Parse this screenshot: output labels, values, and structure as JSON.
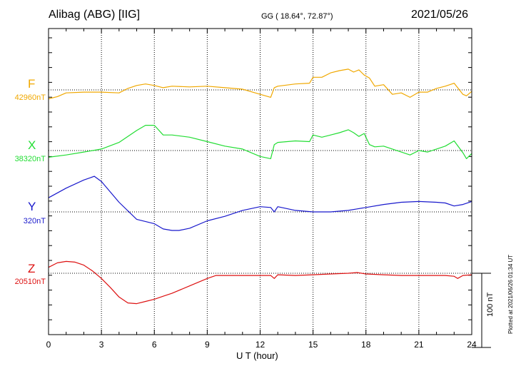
{
  "header": {
    "title": "Alibag (ABG)  [IIG]",
    "coords": "GG ( 18.64°,  72.87°)",
    "date": "2021/05/26"
  },
  "footer": {
    "plotted": "Plotted at 2021/06/26 01:34 UT",
    "scale_label": "100 nT"
  },
  "chart_data": {
    "type": "line",
    "xlabel": "U T (hour)",
    "xlim": [
      0,
      24
    ],
    "xticks": [
      "0",
      "3",
      "6",
      "9",
      "12",
      "15",
      "18",
      "21",
      "24"
    ],
    "grid": true,
    "scale_bar_nT": 100,
    "series": [
      {
        "name": "F",
        "baseline_label": "42960nT",
        "baseline_nT": 42960,
        "color": "#f0a800",
        "x": [
          0,
          0.5,
          1,
          2,
          3,
          4,
          4.5,
          5,
          5.5,
          6,
          6.5,
          7,
          8,
          9,
          10,
          11,
          12,
          12.6,
          12.8,
          13,
          14,
          14.8,
          15,
          15.5,
          16,
          16.5,
          17,
          17.3,
          17.6,
          17.9,
          18.2,
          18.5,
          19,
          19.5,
          20,
          20.5,
          21,
          21.5,
          22,
          22.5,
          23,
          23.5,
          23.7,
          24
        ],
        "values": [
          42948,
          42951,
          42956,
          42957,
          42957,
          42956,
          42962,
          42966,
          42968,
          42966,
          42963,
          42965,
          42964,
          42965,
          42963,
          42961,
          42954,
          42950,
          42963,
          42965,
          42968,
          42969,
          42977,
          42977,
          42983,
          42986,
          42988,
          42984,
          42987,
          42980,
          42976,
          42965,
          42967,
          42954,
          42956,
          42950,
          42957,
          42957,
          42962,
          42965,
          42969,
          42954,
          42952,
          42958
        ]
      },
      {
        "name": "X",
        "baseline_label": "38320nT",
        "baseline_nT": 38320,
        "color": "#22dd33",
        "x": [
          0,
          1,
          2,
          3,
          4,
          5,
          5.5,
          6,
          6.5,
          7,
          8,
          9,
          10,
          11,
          12,
          12.6,
          12.8,
          13,
          14,
          14.8,
          15,
          15.5,
          16,
          16.5,
          17,
          17.3,
          17.6,
          17.9,
          18.2,
          18.5,
          19,
          19.5,
          20,
          20.5,
          21,
          21.5,
          22,
          22.5,
          23,
          23.5,
          23.7,
          24
        ],
        "values": [
          38311,
          38314,
          38318,
          38322,
          38331,
          38347,
          38354,
          38354,
          38341,
          38341,
          38338,
          38332,
          38326,
          38322,
          38312,
          38309,
          38328,
          38331,
          38333,
          38332,
          38341,
          38338,
          38341,
          38344,
          38348,
          38344,
          38339,
          38343,
          38328,
          38325,
          38326,
          38322,
          38318,
          38314,
          38320,
          38318,
          38322,
          38326,
          38333,
          38317,
          38309,
          38316
        ]
      },
      {
        "name": "Y",
        "baseline_label": "320nT",
        "baseline_nT": 320,
        "color": "#1818cc",
        "x": [
          0,
          1,
          2,
          2.6,
          3,
          4,
          5,
          6,
          6.5,
          7,
          7.4,
          8,
          9,
          10,
          11,
          12,
          12.6,
          12.8,
          13,
          14,
          15,
          16,
          17,
          17.5,
          18,
          19,
          20,
          21,
          22,
          22.5,
          23,
          23.5,
          24
        ],
        "values": [
          339,
          352,
          363,
          368,
          361,
          333,
          310,
          304,
          297,
          295,
          295,
          298,
          308,
          314,
          322,
          327,
          326,
          320,
          327,
          322,
          320,
          320,
          322,
          324,
          326,
          330,
          333,
          334,
          333,
          332,
          328,
          330,
          334
        ]
      },
      {
        "name": "Z",
        "baseline_label": "20510nT",
        "baseline_nT": 20510,
        "color": "#dd1111",
        "x": [
          0,
          0.5,
          1,
          1.5,
          2,
          2.5,
          3,
          3.5,
          4,
          4.5,
          5,
          5.5,
          6,
          6.5,
          7,
          8,
          9,
          9.5,
          10,
          11,
          12,
          12.6,
          12.8,
          13,
          14,
          15,
          16,
          17,
          17.5,
          18,
          19,
          20,
          21,
          22,
          22.5,
          23,
          23.2,
          23.5,
          24
        ],
        "values": [
          20518,
          20524,
          20526,
          20525,
          20521,
          20513,
          20503,
          20491,
          20478,
          20470,
          20469,
          20472,
          20475,
          20479,
          20483,
          20493,
          20503,
          20507,
          20507,
          20507,
          20507,
          20507,
          20503,
          20508,
          20507,
          20508,
          20509,
          20510,
          20511,
          20509,
          20508,
          20507,
          20507,
          20507,
          20507,
          20506,
          20503,
          20507,
          20508
        ]
      }
    ]
  }
}
